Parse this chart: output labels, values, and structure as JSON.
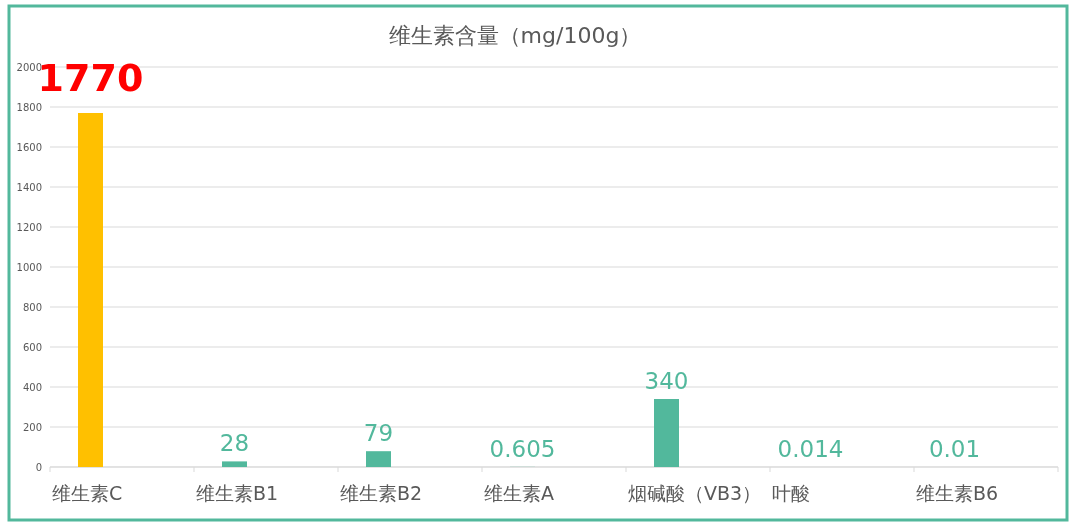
{
  "chart_data": {
    "type": "bar",
    "title": "维生素含量（mg/100g）",
    "categories": [
      "维生素C",
      "维生素B1",
      "维生素B2",
      "维生素A",
      "烟碱酸（VB3）",
      "叶酸",
      "维生素B6"
    ],
    "values": [
      1770,
      28,
      79,
      0.605,
      340,
      0.014,
      0.01
    ],
    "colors": [
      "#ffc000",
      "#52b89c",
      "#52b89c",
      "#52b89c",
      "#52b89c",
      "#52b89c",
      "#52b89c"
    ],
    "ylim": [
      0,
      2000
    ],
    "yticks": [
      0,
      200,
      400,
      600,
      800,
      1000,
      1200,
      1400,
      1600,
      1800,
      2000
    ],
    "grid": "y",
    "data_labels": true
  }
}
